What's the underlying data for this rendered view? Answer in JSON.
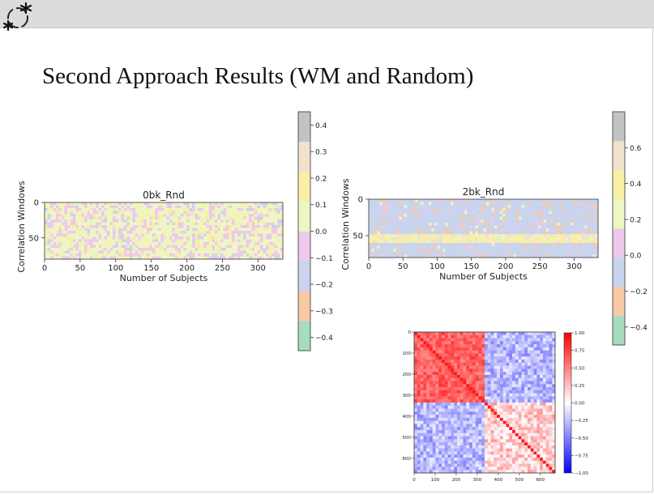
{
  "slide": {
    "title": "Second Approach Results (WM and Random)",
    "logo_icon": "molecule-logo-icon",
    "topbar_color": "#dcdcdc"
  },
  "chart_data": [
    {
      "type": "heatmap",
      "title": "0bk_Rnd",
      "xlabel": "Number of Subjects",
      "ylabel": "Correlation Windows",
      "xticks": [
        0,
        50,
        100,
        150,
        200,
        250,
        300
      ],
      "xtick_labels": [
        "0",
        "50",
        "100",
        "150",
        "200",
        "250",
        "300"
      ],
      "yticks": [
        0,
        50
      ],
      "ytick_labels": [
        "0",
        "50"
      ],
      "xlim": [
        0,
        335
      ],
      "ylim": [
        0,
        80
      ],
      "colorbar": {
        "ticks": [
          0.4,
          0.3,
          0.2,
          0.1,
          0.0,
          -0.1,
          -0.2,
          -0.3,
          -0.4
        ],
        "tick_labels": [
          "0.4",
          "0.3",
          "0.2",
          "0.1",
          "0.0",
          "−0.1",
          "−0.2",
          "−0.3",
          "−0.4"
        ],
        "range": [
          -0.45,
          0.45
        ],
        "colors": [
          "#a7dcc0",
          "#f9c9a5",
          "#c9d4ee",
          "#eec9ec",
          "#eef6c4",
          "#f7f0a6",
          "#f0e2cc",
          "#c3c3c3"
        ]
      }
    },
    {
      "type": "heatmap",
      "title": "2bk_Rnd",
      "xlabel": "Number of Subjects",
      "ylabel": "Correlation Windows",
      "xticks": [
        0,
        50,
        100,
        150,
        200,
        250,
        300
      ],
      "xtick_labels": [
        "0",
        "50",
        "100",
        "150",
        "200",
        "250",
        "300"
      ],
      "yticks": [
        0,
        50
      ],
      "ytick_labels": [
        "0",
        "50"
      ],
      "xlim": [
        0,
        335
      ],
      "ylim": [
        0,
        80
      ],
      "colorbar": {
        "ticks": [
          0.6,
          0.4,
          0.2,
          0.0,
          -0.2,
          -0.4
        ],
        "tick_labels": [
          "0.6",
          "0.4",
          "0.2",
          "0.0",
          "−0.2",
          "−0.4"
        ],
        "range": [
          -0.5,
          0.8
        ],
        "colors": [
          "#a7dcc0",
          "#f9c9a5",
          "#c9d4ee",
          "#eec9ec",
          "#eef6c4",
          "#f7f0a6",
          "#f0e2cc",
          "#c3c3c3"
        ]
      }
    },
    {
      "type": "heatmap",
      "title": "",
      "xlabel": "",
      "ylabel": "",
      "xticks": [
        0,
        100,
        200,
        300,
        400,
        500,
        600
      ],
      "xtick_labels": [
        "0",
        "100",
        "200",
        "300",
        "400",
        "500",
        "600"
      ],
      "yticks": [
        0,
        100,
        200,
        300,
        400,
        500,
        600
      ],
      "ytick_labels": [
        "0",
        "100",
        "200",
        "300",
        "400",
        "500",
        "600"
      ],
      "xlim": [
        0,
        670
      ],
      "ylim": [
        0,
        670
      ],
      "block_boundary": 335,
      "colorbar": {
        "ticks": [
          1.0,
          0.75,
          0.5,
          0.25,
          0.0,
          -0.25,
          -0.5,
          -0.75,
          -1.0
        ],
        "tick_labels": [
          "1.00",
          "0.75",
          "0.50",
          "0.25",
          "0.00",
          "−0.25",
          "−0.50",
          "−0.75",
          "−1.00"
        ],
        "range": [
          -1.0,
          1.0
        ],
        "colormap": "bwr"
      }
    }
  ]
}
